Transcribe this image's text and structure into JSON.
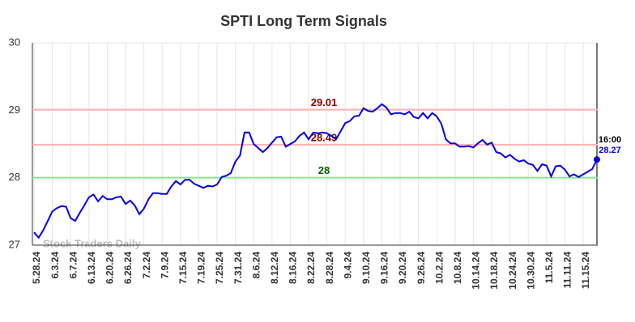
{
  "chart_data": {
    "type": "line",
    "title": "SPTI Long Term Signals",
    "watermark": "Stock Traders Daily",
    "categories": [
      "5.28.24",
      null,
      null,
      null,
      "6.3.24",
      null,
      null,
      null,
      "6.7.24",
      null,
      null,
      null,
      "6.13.24",
      null,
      null,
      null,
      "6.20.24",
      null,
      null,
      null,
      "6.26.24",
      null,
      null,
      null,
      "7.2.24",
      null,
      null,
      null,
      "7.9.24",
      null,
      null,
      null,
      "7.15.24",
      null,
      null,
      null,
      "7.19.24",
      null,
      null,
      null,
      "7.25.24",
      null,
      null,
      null,
      "7.31.24",
      null,
      null,
      null,
      "8.6.24",
      null,
      null,
      null,
      "8.12.24",
      null,
      null,
      null,
      "8.16.24",
      null,
      null,
      null,
      "8.22.24",
      null,
      null,
      null,
      "8.28.24",
      null,
      null,
      null,
      "9.4.24",
      null,
      null,
      null,
      "9.10.24",
      null,
      null,
      null,
      "9.16.24",
      null,
      null,
      null,
      "9.20.24",
      null,
      null,
      null,
      "9.26.24",
      null,
      null,
      null,
      "10.2.24",
      null,
      null,
      null,
      "10.8.24",
      null,
      null,
      null,
      "10.14.24",
      null,
      null,
      null,
      "10.18.24",
      null,
      null,
      null,
      "10.24.24",
      null,
      null,
      null,
      "10.30.24",
      null,
      null,
      null,
      "11.5.24",
      null,
      null,
      null,
      "11.11.24",
      null,
      null,
      null,
      "11.15.24",
      null,
      null,
      null
    ],
    "series": [
      {
        "name": "SPTI",
        "color": "#0000e6",
        "values": [
          27.19,
          27.11,
          27.22,
          27.36,
          27.5,
          27.55,
          27.58,
          27.57,
          27.4,
          27.36,
          27.48,
          27.59,
          27.71,
          27.75,
          27.65,
          27.73,
          27.68,
          27.68,
          27.71,
          27.72,
          27.61,
          27.66,
          27.59,
          27.46,
          27.54,
          27.68,
          27.77,
          27.77,
          27.76,
          27.76,
          27.87,
          27.95,
          27.9,
          27.97,
          27.97,
          27.91,
          27.88,
          27.85,
          27.88,
          27.87,
          27.9,
          28.01,
          28.03,
          28.07,
          28.24,
          28.33,
          28.67,
          28.67,
          28.5,
          28.44,
          28.38,
          28.44,
          28.52,
          28.6,
          28.61,
          28.46,
          28.5,
          28.54,
          28.62,
          28.67,
          28.57,
          28.67,
          28.66,
          28.67,
          28.66,
          28.62,
          28.57,
          28.69,
          28.81,
          28.84,
          28.91,
          28.92,
          29.03,
          28.99,
          28.98,
          29.03,
          29.09,
          29.04,
          28.94,
          28.96,
          28.96,
          28.94,
          28.98,
          28.9,
          28.88,
          28.96,
          28.88,
          28.96,
          28.91,
          28.8,
          28.57,
          28.51,
          28.51,
          28.46,
          28.46,
          28.47,
          28.45,
          28.51,
          28.56,
          28.49,
          28.52,
          28.38,
          28.36,
          28.3,
          28.34,
          28.28,
          28.24,
          28.26,
          28.21,
          28.19,
          28.1,
          28.2,
          28.18,
          28.02,
          28.17,
          28.18,
          28.12,
          28.02,
          28.05,
          28.01,
          28.05,
          28.09,
          28.13,
          28.27
        ]
      }
    ],
    "reference_lines": [
      {
        "value": 29.01,
        "color": "#ffb3b3",
        "label_color": "#8b0000"
      },
      {
        "value": 28.49,
        "color": "#ffb3b3",
        "label_color": "#8b0000"
      },
      {
        "value": 28,
        "color": "#90e090",
        "label_color": "#006400"
      }
    ],
    "last_time": "16:00",
    "ylim": [
      27,
      30
    ],
    "yticks": [
      27,
      28,
      29,
      30
    ],
    "grid": true
  }
}
